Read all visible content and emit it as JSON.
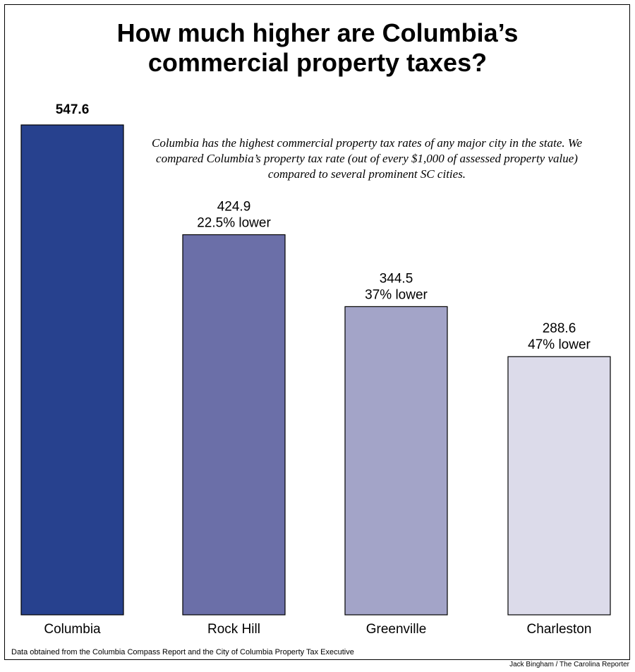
{
  "title_lines": [
    "How much higher are Columbia’s",
    "commercial property taxes?"
  ],
  "subtitle": "Columbia has the highest commercial property tax rates of any major city in the state. We compared Columbia’s property tax rate (out of every $1,000 of assessed property value) compared to several prominent SC cities.",
  "source": "Data obtained from the Columbia Compass Report  and the City of Columbia Property Tax Executive",
  "credit": "Jack Bingham / The Carolina Reporter",
  "chart_data": {
    "type": "bar",
    "categories": [
      "Columbia",
      "Rock Hill",
      "Greenville",
      "Charleston"
    ],
    "values": [
      547.6,
      424.9,
      344.5,
      288.6
    ],
    "value_labels": [
      "547.6",
      "424.9",
      "344.5",
      "288.6"
    ],
    "comparison_labels": [
      "",
      "22.5% lower",
      "37% lower",
      "47% lower"
    ],
    "colors": [
      "#27418e",
      "#6b6fa8",
      "#a3a4c8",
      "#dcdbea"
    ],
    "ylim": [
      0,
      547.6
    ],
    "grid": false,
    "legend": "none"
  }
}
